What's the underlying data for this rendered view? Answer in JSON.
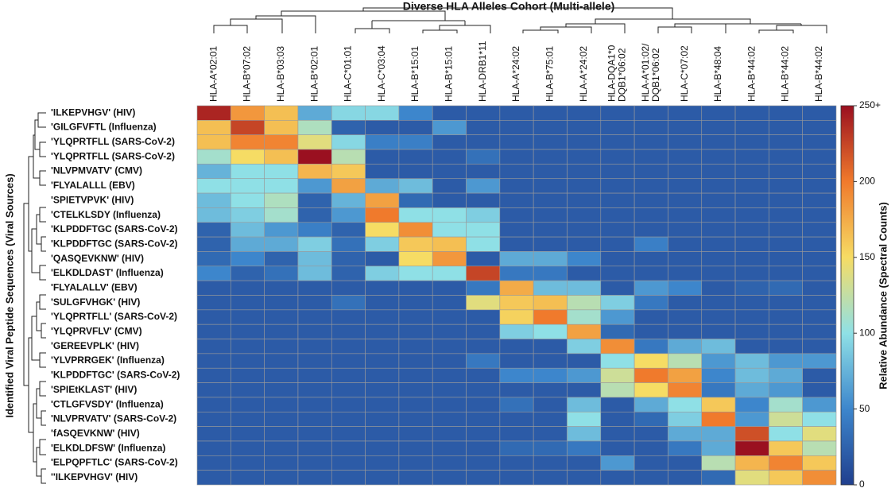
{
  "chart_data": {
    "type": "heatmap",
    "title": "Diverse HLA Alleles Cohort (Multi-allele)",
    "y_label": "Identified Viral Peptide Sequences (Viral Sources)",
    "colorbar_label": "Relative Abundance (Spectral Counts)",
    "columns": [
      [
        "HLA-A*02:01"
      ],
      [
        "HLA-B*07:02"
      ],
      [
        "HLA-B*03:03"
      ],
      [
        "HLA-B*02:01"
      ],
      [
        "HLA-C*01:01"
      ],
      [
        "HLA-C*03:04"
      ],
      [
        "HLA-B*15:01"
      ],
      [
        "HLA-B*15:01"
      ],
      [
        "HLA-DRB1*11"
      ],
      [
        "HLA-A*24:02"
      ],
      [
        "HLA-B*75:01"
      ],
      [
        "HLA-A*24:02"
      ],
      [
        "HLA-DQA1*0",
        "DQB1*06:02"
      ],
      [
        "HLA-A*01:02/",
        "DQB1*06:02"
      ],
      [
        "HLA-C*07:02"
      ],
      [
        "HLA-B*48:04"
      ],
      [
        "HLA-B*44:02"
      ],
      [
        "HLA-B*44:02"
      ],
      [
        "HLA-B*44:02"
      ]
    ],
    "rows": [
      "'ILKEPVHGV' (HIV)",
      "'GILGFVFTL (Influenza)",
      "'YLQPRTFLL (SARS-CoV-2)",
      "'YLQPRTFLL (SARS-CoV-2)",
      "'NLVPMVATV' (CMV)",
      "'FLYALALLL (EBV)",
      "'SPIETVPVK' (HIV)",
      "'CTELKLSDY (Influenza)",
      "'KLPDDFTGC (SARS-CoV-2)",
      "'KLPDDFTGC (SARS-CoV-2)",
      "'QASQEVKNW' (HIV)",
      "'ELKDLDAST' (Influenza)",
      "'FLYALALLV' (EBV)",
      "'SULGFVHGK' (HIV)",
      "'YLQPRTFLL' (SARS-CoV-2)",
      "'YLQPRVFLV' (CMV)",
      "'GEREEVPLK' (HIV)",
      "'YLVPRRGEK' (Influenza)",
      "'KLPDDFTGC' (SARS-CoV-2)",
      "'SPIEtKLAST' (HIV)",
      "'CTLGFVSDY' (Influenza)",
      "'NLVPRVATV' (SARS-CoV-2)",
      "'fASQEVKNW' (HIV)",
      "'ELKDLDFSW' (Influenza)",
      "'ELPQPFTLC' (SARS-CoV-2)",
      "''ILKEPVHGV' (HIV)"
    ],
    "values": [
      [
        240,
        185,
        165,
        70,
        95,
        95,
        50,
        20,
        20,
        20,
        20,
        20,
        20,
        20,
        20,
        20,
        20,
        20,
        20
      ],
      [
        165,
        225,
        165,
        115,
        25,
        20,
        20,
        60,
        20,
        20,
        20,
        20,
        20,
        20,
        20,
        20,
        20,
        20,
        20
      ],
      [
        165,
        195,
        195,
        140,
        95,
        45,
        45,
        20,
        20,
        20,
        20,
        20,
        20,
        20,
        20,
        20,
        20,
        20,
        20
      ],
      [
        110,
        150,
        165,
        250,
        120,
        20,
        20,
        20,
        35,
        20,
        20,
        20,
        20,
        20,
        20,
        20,
        20,
        20,
        20
      ],
      [
        75,
        100,
        100,
        170,
        160,
        20,
        20,
        20,
        20,
        20,
        20,
        20,
        20,
        20,
        20,
        20,
        20,
        20,
        20
      ],
      [
        100,
        100,
        100,
        60,
        180,
        70,
        80,
        20,
        60,
        20,
        20,
        20,
        20,
        20,
        20,
        20,
        20,
        20,
        20
      ],
      [
        80,
        100,
        115,
        25,
        75,
        180,
        30,
        20,
        20,
        20,
        20,
        20,
        20,
        20,
        20,
        20,
        20,
        20,
        20
      ],
      [
        80,
        90,
        110,
        25,
        60,
        200,
        100,
        100,
        90,
        20,
        20,
        20,
        20,
        20,
        20,
        20,
        20,
        20,
        20
      ],
      [
        25,
        80,
        60,
        45,
        25,
        150,
        190,
        100,
        100,
        20,
        20,
        20,
        20,
        20,
        20,
        20,
        20,
        20,
        20
      ],
      [
        25,
        70,
        70,
        90,
        35,
        90,
        160,
        165,
        100,
        20,
        20,
        20,
        20,
        45,
        20,
        20,
        20,
        20,
        20
      ],
      [
        30,
        50,
        25,
        80,
        25,
        20,
        150,
        185,
        20,
        70,
        70,
        50,
        20,
        20,
        20,
        20,
        20,
        20,
        20
      ],
      [
        50,
        25,
        35,
        80,
        25,
        90,
        100,
        100,
        225,
        40,
        40,
        20,
        20,
        20,
        20,
        20,
        20,
        20,
        20
      ],
      [
        20,
        20,
        20,
        20,
        20,
        20,
        20,
        20,
        40,
        175,
        80,
        80,
        20,
        60,
        50,
        20,
        25,
        30,
        20
      ],
      [
        20,
        20,
        20,
        20,
        35,
        20,
        20,
        20,
        140,
        160,
        165,
        120,
        90,
        40,
        20,
        20,
        20,
        20,
        20
      ],
      [
        20,
        20,
        20,
        20,
        20,
        20,
        20,
        20,
        20,
        155,
        200,
        110,
        60,
        20,
        20,
        20,
        20,
        20,
        20
      ],
      [
        20,
        20,
        20,
        20,
        20,
        20,
        20,
        20,
        20,
        90,
        100,
        180,
        30,
        20,
        20,
        20,
        20,
        20,
        20
      ],
      [
        20,
        20,
        20,
        20,
        20,
        20,
        20,
        20,
        20,
        20,
        20,
        90,
        190,
        40,
        70,
        80,
        20,
        20,
        20
      ],
      [
        20,
        20,
        20,
        20,
        20,
        20,
        20,
        20,
        40,
        20,
        20,
        20,
        100,
        150,
        120,
        60,
        80,
        60,
        60
      ],
      [
        20,
        20,
        20,
        20,
        20,
        20,
        20,
        20,
        20,
        50,
        50,
        60,
        130,
        200,
        180,
        50,
        80,
        70,
        20
      ],
      [
        20,
        20,
        20,
        20,
        20,
        20,
        20,
        20,
        20,
        20,
        20,
        20,
        120,
        150,
        195,
        40,
        70,
        60,
        20
      ],
      [
        20,
        20,
        20,
        20,
        20,
        20,
        20,
        20,
        20,
        35,
        20,
        80,
        20,
        70,
        100,
        160,
        50,
        110,
        60
      ],
      [
        20,
        20,
        20,
        20,
        20,
        20,
        20,
        20,
        20,
        20,
        20,
        100,
        20,
        30,
        90,
        200,
        60,
        130,
        100
      ],
      [
        20,
        20,
        20,
        20,
        20,
        20,
        20,
        20,
        20,
        20,
        20,
        80,
        20,
        20,
        70,
        70,
        220,
        100,
        140
      ],
      [
        20,
        20,
        20,
        20,
        20,
        20,
        20,
        20,
        20,
        30,
        30,
        40,
        20,
        20,
        40,
        70,
        250,
        160,
        120
      ],
      [
        20,
        20,
        20,
        20,
        20,
        20,
        20,
        20,
        20,
        20,
        20,
        20,
        60,
        20,
        20,
        120,
        170,
        195,
        160
      ],
      [
        20,
        20,
        20,
        20,
        20,
        20,
        20,
        20,
        20,
        20,
        20,
        20,
        20,
        20,
        20,
        30,
        140,
        160,
        190
      ]
    ],
    "zlim": [
      0,
      250
    ],
    "zticks": [
      0,
      50,
      100,
      150,
      200,
      {
        "value": 250,
        "label": "250+"
      }
    ],
    "colorscale": [
      [
        0,
        "#203f8e"
      ],
      [
        0.2,
        "#3d86cc"
      ],
      [
        0.4,
        "#8fe0e6"
      ],
      [
        0.6,
        "#f6dc64"
      ],
      [
        0.8,
        "#f07a2c"
      ],
      [
        1,
        "#9a1020"
      ]
    ]
  }
}
